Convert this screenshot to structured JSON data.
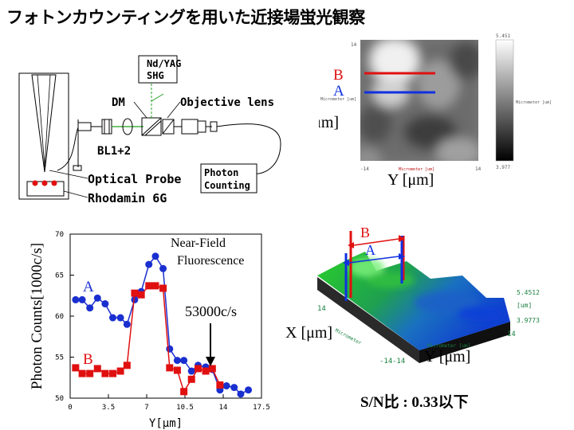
{
  "title": "フォトンカウンティングを用いた近接場蛍光観察",
  "setup": {
    "laser_line1": "Nd/YAG",
    "laser_line2": "SHG",
    "dm": "DM",
    "objective": "Objective lens",
    "bl": "BL1+2",
    "probe": "Optical Probe",
    "sample": "Rhodamin 6G",
    "photon_line1": "Photon",
    "photon_line2": "Counting"
  },
  "image_map": {
    "label_b": "B",
    "label_a": "A",
    "x_axis_label": "X [μm]",
    "y_axis_label": "Y [μm]",
    "left_top": "14",
    "left_bottom": "-14",
    "bottom_right": "14",
    "bottom_unit": "Micrometer [um]",
    "left_unit": "Micrometer [um]",
    "colorbar_top": "5.451",
    "colorbar_bottom": "3.977",
    "colorbar_unit": "Micrometer [um]",
    "colors": {
      "line_b": "#e01010",
      "line_a": "#1030e0"
    }
  },
  "surface_plot": {
    "label_b": "B",
    "label_a": "A",
    "x_axis_label": "X [μm]",
    "y_axis_label": "Y [μm]",
    "scale_top": "5.4512",
    "scale_unit": "[um]",
    "scale_bottom": "3.9773",
    "corner_14_left": "14",
    "corner_m14": "-14",
    "corner_m14_b": "-14",
    "corner_14_right": "14",
    "axis_text_1": "Micrometer [um]",
    "axis_text_2": "Micrometer"
  },
  "sn_text": "S/N比 : 0.33以下",
  "chart_data": {
    "type": "line",
    "ylabel": "Photon Counts[1000c/s]",
    "xlabel": "Y[μm]",
    "xlim": [
      0,
      17.5
    ],
    "ylim": [
      50,
      70
    ],
    "xticks": [
      "0",
      "3.5",
      "7",
      "10.5",
      "14",
      "17.5"
    ],
    "yticks": [
      "50",
      "55",
      "60",
      "65",
      "70"
    ],
    "annotation_title_1": "Near-Field",
    "annotation_title_2": "Fluorescence",
    "annotation_value": "53000c/s",
    "series": [
      {
        "name": "A",
        "color": "#1a2fd0",
        "marker": "circle",
        "x": [
          0.5,
          1.1,
          1.8,
          2.5,
          3.2,
          3.9,
          4.6,
          5.2,
          5.9,
          6.5,
          7.2,
          7.8,
          8.5,
          9.1,
          9.8,
          10.4,
          11.1,
          11.7,
          12.4,
          13.0,
          13.7,
          14.3,
          15.0,
          15.6,
          16.3
        ],
        "y": [
          62.0,
          62.0,
          61.0,
          62.2,
          61.5,
          59.8,
          59.8,
          59.0,
          62.0,
          63.0,
          66.3,
          67.3,
          65.8,
          56.0,
          54.6,
          54.6,
          53.3,
          54.0,
          53.8,
          53.5,
          51.0,
          51.5,
          51.3,
          50.5,
          51.0
        ]
      },
      {
        "name": "B",
        "color": "#e01010",
        "marker": "square",
        "x": [
          0.5,
          1.1,
          1.8,
          2.5,
          3.2,
          3.9,
          4.6,
          5.2,
          5.9,
          6.5,
          7.2,
          7.8,
          8.5,
          9.1,
          9.8,
          10.4,
          11.1,
          11.7,
          12.4,
          13.0,
          13.7
        ],
        "y": [
          53.7,
          53.0,
          53.0,
          53.6,
          53.0,
          53.0,
          53.3,
          54.0,
          62.8,
          62.6,
          63.7,
          63.7,
          63.4,
          53.7,
          53.4,
          50.8,
          52.3,
          53.6,
          53.3,
          53.6,
          51.6
        ]
      }
    ],
    "series_labels": {
      "a": "A",
      "b": "B"
    }
  }
}
